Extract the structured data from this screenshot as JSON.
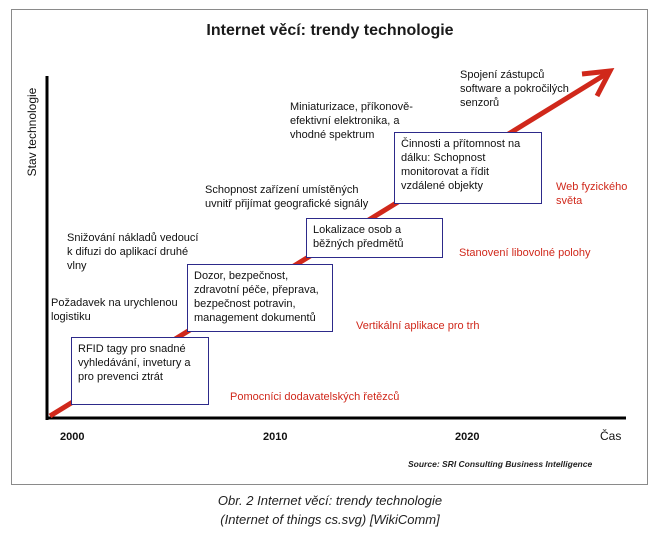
{
  "title": "Internet věcí: trendy technologie",
  "y_axis_label": "Stav technologie",
  "x_axis_label": "Čas",
  "years": [
    "2000",
    "2010",
    "2020"
  ],
  "source": "Source: SRI Consulting Business Intelligence",
  "black_notes": [
    "Požadavek na urychlenou logistiku",
    "Snižování nákladů vedoucí k difuzi do aplikací druhé vlny",
    "Schopnost zařízení umístěných uvnitř přijímat geografické signály",
    "Miniaturizace, příkonově-efektivní elektronika, a vhodné spektrum",
    "Spojení zástupců software a pokročilých senzorů"
  ],
  "boxes": [
    "RFID tagy pro snadné vyhledávání, invetury a pro prevenci ztrát",
    "Dozor, bezpečnost, zdravotní péče, přeprava, bezpečnost potravin, management dokumentů",
    "Lokalizace osob a běžných předmětů",
    "Činnosti a přítomnost na dálku: Schopnost monitorovat a řídit vzdálené objekty"
  ],
  "red_labels": [
    "Pomocníci dodavatelských řetězců",
    "Vertikální aplikace pro trh",
    "Stanovení libovolné polohy",
    "Web fyzického světa"
  ],
  "caption_line1": "Obr. 2  Internet věcí: trendy technologie",
  "caption_line2": "(Internet of things cs.svg) [WikiComm]",
  "colors": {
    "arrow": "#d0281b",
    "box_border": "#2d2a8a",
    "red_text": "#d0281b"
  }
}
